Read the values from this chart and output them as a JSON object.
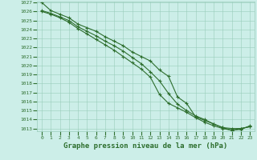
{
  "title": "Graphe pression niveau de la mer (hPa)",
  "xlabel_values": [
    0,
    1,
    2,
    3,
    4,
    5,
    6,
    7,
    8,
    9,
    10,
    11,
    12,
    13,
    14,
    15,
    16,
    17,
    18,
    19,
    20,
    21,
    22,
    23
  ],
  "ylim": [
    1013,
    1027
  ],
  "yticks": [
    1013,
    1014,
    1015,
    1016,
    1017,
    1018,
    1019,
    1020,
    1021,
    1022,
    1023,
    1024,
    1025,
    1026,
    1027
  ],
  "background_color": "#cceee8",
  "grid_color": "#99ccbb",
  "line_color": "#2d6e2d",
  "line1": [
    1027.0,
    1026.1,
    1025.7,
    1025.3,
    1024.6,
    1024.2,
    1023.8,
    1023.2,
    1022.7,
    1022.2,
    1021.5,
    1021.0,
    1020.5,
    1019.5,
    1018.8,
    1016.5,
    1015.8,
    1014.3,
    1013.9,
    1013.5,
    1013.1,
    1013.0,
    1013.0,
    1013.2
  ],
  "line2": [
    1026.1,
    1025.8,
    1025.4,
    1025.0,
    1024.3,
    1023.8,
    1023.3,
    1022.7,
    1022.2,
    1021.6,
    1020.9,
    1020.2,
    1019.3,
    1018.3,
    1016.9,
    1015.7,
    1015.0,
    1014.4,
    1014.0,
    1013.5,
    1013.1,
    1012.8,
    1013.0,
    1013.2
  ],
  "line3": [
    1026.0,
    1025.7,
    1025.3,
    1024.8,
    1024.1,
    1023.5,
    1022.9,
    1022.3,
    1021.7,
    1021.0,
    1020.3,
    1019.6,
    1018.7,
    1016.8,
    1015.8,
    1015.3,
    1014.8,
    1014.2,
    1013.7,
    1013.3,
    1013.0,
    1012.8,
    1012.9,
    1013.3
  ],
  "marker": "+",
  "marker_size": 3.5,
  "line_width": 0.8,
  "title_fontsize": 6.5,
  "tick_fontsize": 4.5
}
